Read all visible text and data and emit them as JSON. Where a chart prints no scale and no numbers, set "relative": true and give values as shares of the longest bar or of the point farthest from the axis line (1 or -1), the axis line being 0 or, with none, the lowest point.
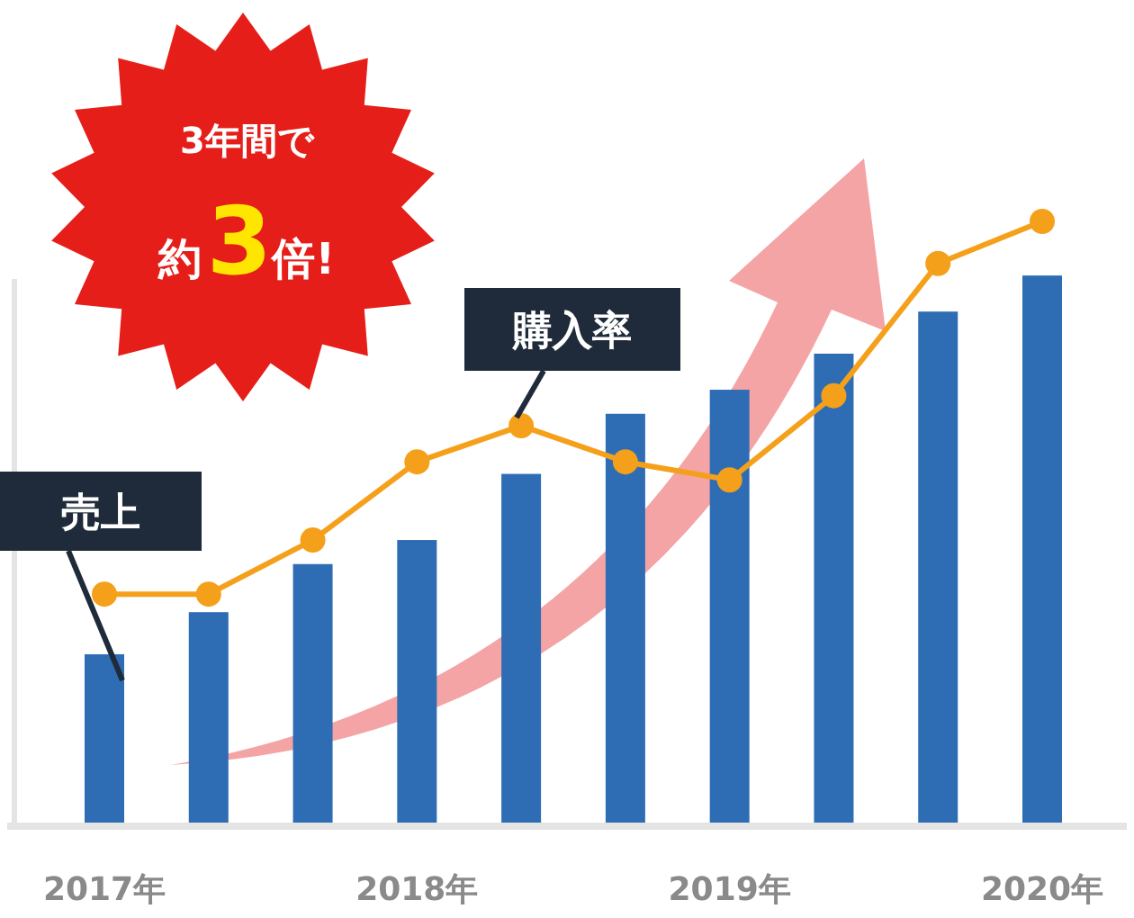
{
  "chart_data": {
    "type": "bar",
    "relative": true,
    "categories": [
      "2017年",
      null,
      null,
      "2018年",
      null,
      null,
      "2019年",
      null,
      null,
      "2020年"
    ],
    "series": [
      {
        "name": "売上",
        "color": "#2e6db4",
        "values": [
          0.28,
          0.35,
          0.43,
          0.47,
          0.58,
          0.68,
          0.72,
          0.78,
          0.85,
          0.91
        ]
      },
      {
        "name": "購入率",
        "type": "line",
        "color": "#f5a01a",
        "values": [
          0.38,
          0.38,
          0.47,
          0.6,
          0.66,
          0.6,
          0.57,
          0.71,
          0.93,
          1
        ]
      }
    ],
    "marker": "circle",
    "legend": false,
    "tick_labels": "x",
    "annotations": [
      "3年間で",
      "約3倍!"
    ]
  }
}
